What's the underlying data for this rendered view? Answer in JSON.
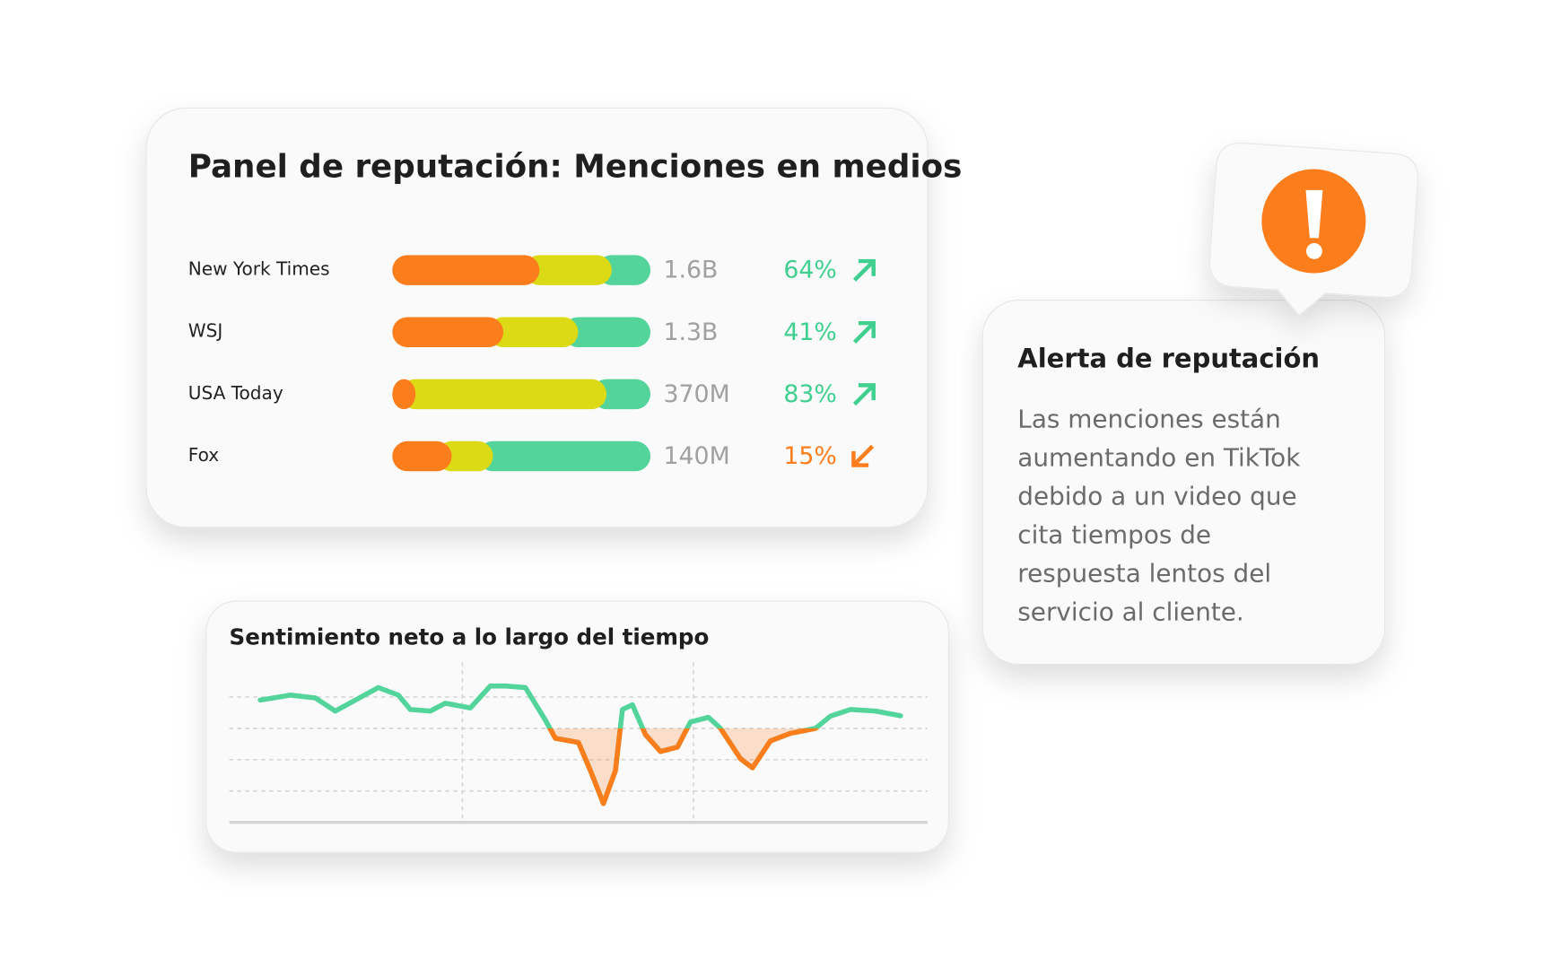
{
  "panel": {
    "title": "Panel de reputación: Menciones en medios",
    "segment_colors": [
      "#fb7d1c",
      "#dcd915",
      "#52d49a"
    ],
    "rows": [
      {
        "name": "New York Times",
        "segments": [
          57,
          28,
          15
        ],
        "total": "1.6B",
        "change": "64%",
        "trend": "up"
      },
      {
        "name": "WSJ",
        "segments": [
          43,
          29,
          28
        ],
        "total": "1.3B",
        "change": "41%",
        "trend": "up"
      },
      {
        "name": "USA Today",
        "segments": [
          9,
          74,
          17
        ],
        "total": "370M",
        "change": "83%",
        "trend": "up"
      },
      {
        "name": "Fox",
        "segments": [
          23,
          16,
          61
        ],
        "total": "140M",
        "change": "15%",
        "trend": "down"
      }
    ]
  },
  "alert": {
    "title": "Alerta de reputación",
    "lines": [
      "Las menciones están",
      "aumentando en TikTok",
      "debido a un video que",
      "cita tiempos de",
      "respuesta lentos del",
      "servicio al cliente."
    ]
  },
  "chart_data": {
    "type": "line",
    "title": "Sentimiento neto a lo largo del tiempo",
    "x": [
      0,
      30,
      55,
      75,
      95,
      118,
      138,
      150,
      170,
      185,
      210,
      230,
      245,
      265,
      285,
      295,
      318,
      330,
      343,
      355,
      362,
      372,
      385,
      400,
      417,
      430,
      448,
      460,
      480,
      492,
      510,
      530,
      555,
      570,
      590,
      615,
      640
    ],
    "values": [
      3.9,
      4.06,
      3.97,
      3.55,
      3.9,
      4.3,
      4.06,
      3.6,
      3.55,
      3.8,
      3.65,
      4.35,
      4.35,
      4.3,
      3.26,
      2.68,
      2.55,
      1.65,
      0.6,
      1.65,
      3.6,
      3.75,
      2.8,
      2.26,
      2.4,
      3.2,
      3.35,
      3.0,
      2.03,
      1.74,
      2.6,
      2.84,
      3.0,
      3.39,
      3.6,
      3.55,
      3.4
    ],
    "threshold": 3,
    "above_color": "#52d49a",
    "below_color": "#fb7d1c",
    "xlim": [
      -31,
      667
    ],
    "ylim": [
      0,
      4.5
    ],
    "xticks": [
      202,
      433
    ],
    "yticks": [
      1,
      2,
      3,
      4
    ],
    "grid": true
  }
}
